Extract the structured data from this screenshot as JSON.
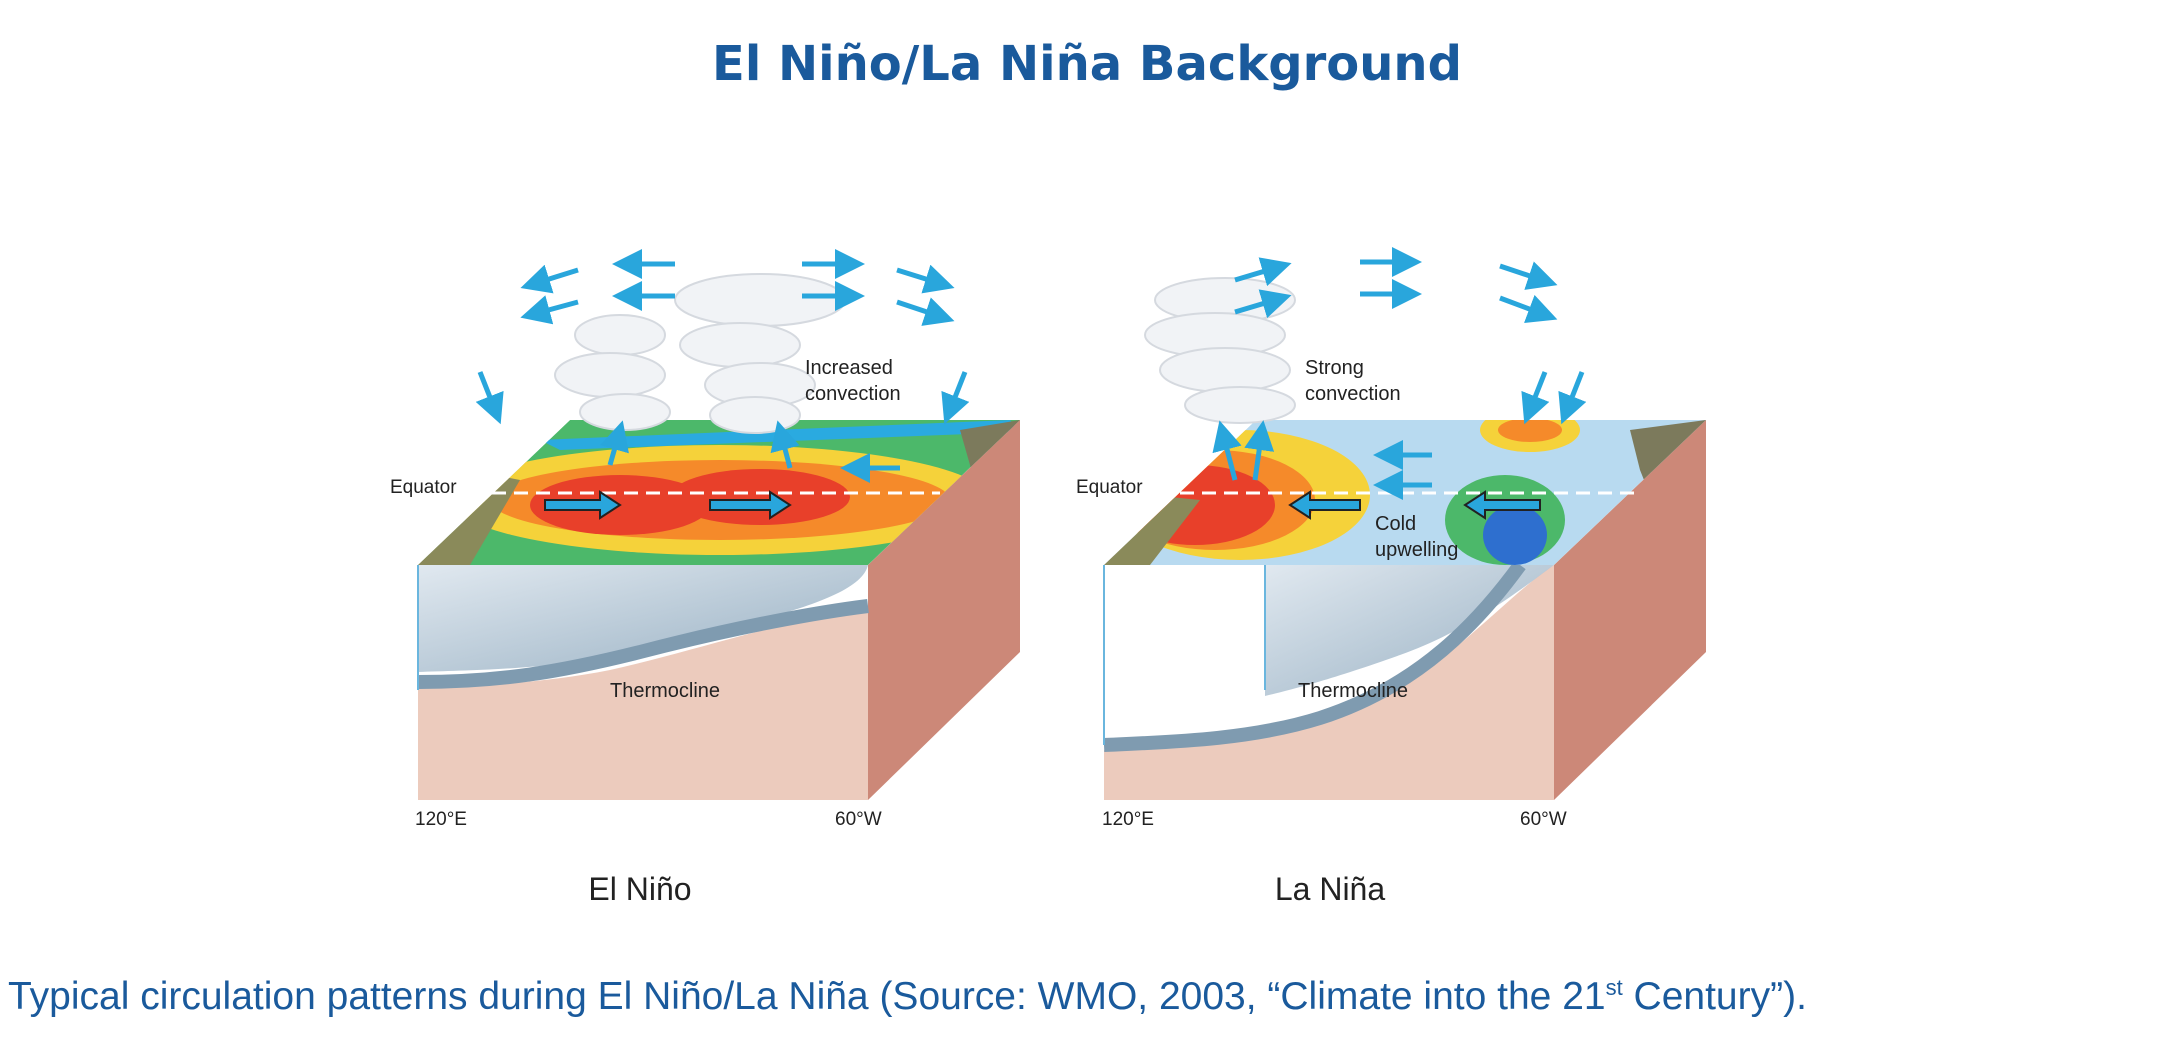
{
  "page": {
    "title": "El Niño/La Niña Background",
    "caption": {
      "pre": "Typical circulation patterns during El Niño/La Niña (Source: WMO, 2003, “Climate into the 21",
      "sup": "st",
      "post": " Century”)."
    }
  },
  "panels": {
    "el_nino": {
      "name": "El Niño",
      "convection_label_1": "Increased",
      "convection_label_2": "convection",
      "equator_label": "Equator",
      "thermocline_label": "Thermocline",
      "lon_west": "120°E",
      "lon_east": "60°W"
    },
    "la_nina": {
      "name": "La Niña",
      "convection_label_1": "Strong",
      "convection_label_2": "convection",
      "upwelling_label_1": "Cold",
      "upwelling_label_2": "upwelling",
      "equator_label": "Equator",
      "thermocline_label": "Thermocline",
      "lon_west": "120°E",
      "lon_east": "60°W"
    }
  },
  "colors": {
    "title": "#1a5a9c",
    "arrow": "#29a6dc",
    "ocean_front": "#eccbbd",
    "ocean_side": "#cc8878",
    "thermocline": "#8aa4b8",
    "warm_core": "#e8402a",
    "warm_mid": "#f58a2a",
    "warm_edge": "#f5d23a",
    "cool_surface": "#b8daf0",
    "green_band": "#4cb86a"
  }
}
